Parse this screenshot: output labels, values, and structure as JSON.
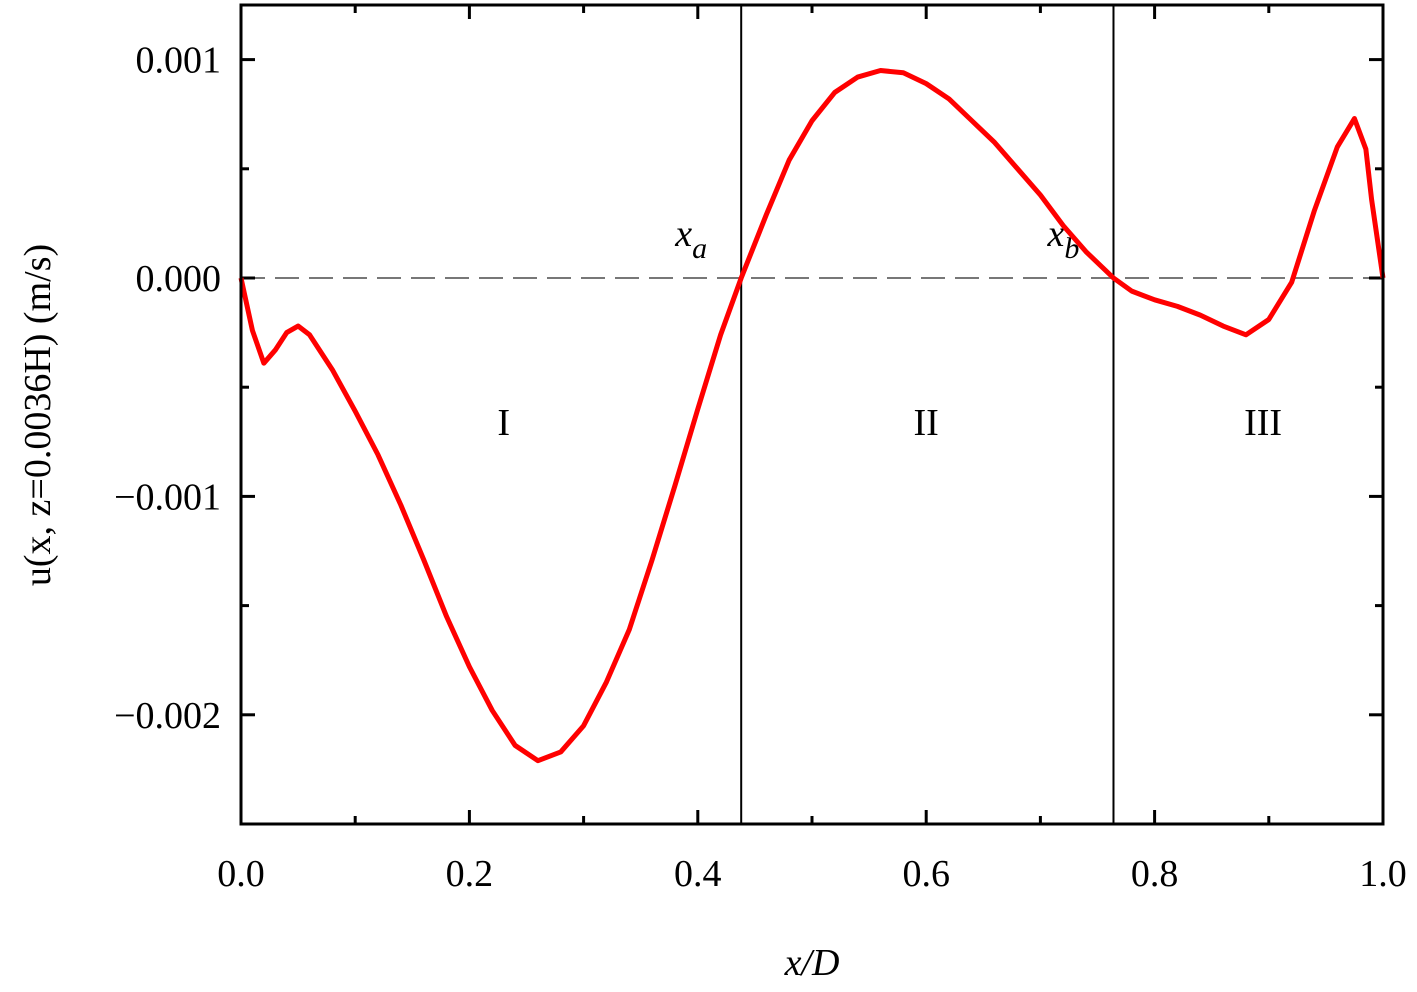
{
  "chart_data": {
    "type": "line",
    "xlabel": "x/D",
    "ylabel": "u(x, z=0.0036H) (m/s)",
    "x": [
      0,
      0.01,
      0.02,
      0.03,
      0.04,
      0.05,
      0.06,
      0.08,
      0.1,
      0.12,
      0.14,
      0.16,
      0.18,
      0.2,
      0.22,
      0.24,
      0.26,
      0.28,
      0.3,
      0.32,
      0.34,
      0.36,
      0.38,
      0.4,
      0.42,
      0.438,
      0.46,
      0.48,
      0.5,
      0.52,
      0.54,
      0.56,
      0.58,
      0.6,
      0.62,
      0.64,
      0.66,
      0.68,
      0.7,
      0.72,
      0.74,
      0.764,
      0.78,
      0.8,
      0.82,
      0.84,
      0.86,
      0.88,
      0.9,
      0.92,
      0.94,
      0.96,
      0.975,
      0.985,
      0.99,
      1.0
    ],
    "series": [
      {
        "color": "#ff0000",
        "values": [
          0,
          -0.00024,
          -0.00039,
          -0.00033,
          -0.00025,
          -0.00022,
          -0.00026,
          -0.00042,
          -0.00061,
          -0.00081,
          -0.00104,
          -0.00129,
          -0.00155,
          -0.00178,
          -0.00198,
          -0.00214,
          -0.00221,
          -0.00217,
          -0.00205,
          -0.00185,
          -0.00161,
          -0.00129,
          -0.00095,
          -0.0006,
          -0.00026,
          0,
          0.00029,
          0.00054,
          0.00072,
          0.00085,
          0.00092,
          0.00095,
          0.00094,
          0.00089,
          0.00082,
          0.00072,
          0.00062,
          0.0005,
          0.00038,
          0.00024,
          0.00012,
          0,
          -6e-05,
          -0.0001,
          -0.00013,
          -0.00017,
          -0.00022,
          -0.00026,
          -0.00019,
          -2e-05,
          0.00031,
          0.0006,
          0.00073,
          0.00059,
          0.00036,
          0
        ]
      }
    ],
    "xlim": [
      0,
      1.0
    ],
    "ylim": [
      -0.0025,
      0.00125
    ],
    "xticks": [
      {
        "value": 0,
        "label": "0.0"
      },
      0.2,
      0.4,
      0.6,
      0.8,
      {
        "value": 1,
        "label": "1.0"
      }
    ],
    "yticks": [
      {
        "value": -0.002,
        "label": "−0.002"
      },
      {
        "value": -0.001,
        "label": "−0.001"
      },
      {
        "value": 0,
        "label": "0.000"
      },
      0.001
    ],
    "xminorticks": [
      0.1,
      0.3,
      0.5,
      0.7,
      0.9
    ],
    "yminorticks": [
      -0.0025,
      -0.0015,
      -0.0005,
      0.0005
    ],
    "zero_line": true,
    "vlines": [
      {
        "x": 0.438,
        "text": "x",
        "subscript": "a"
      },
      {
        "x": 0.764,
        "text": "x",
        "subscript": "b"
      }
    ],
    "regions": [
      {
        "text": "I",
        "x": 0.23,
        "y": -0.00072
      },
      {
        "text": "II",
        "x": 0.6,
        "y": -0.00072
      },
      {
        "text": "III",
        "x": 0.895,
        "y": -0.00072
      }
    ]
  }
}
